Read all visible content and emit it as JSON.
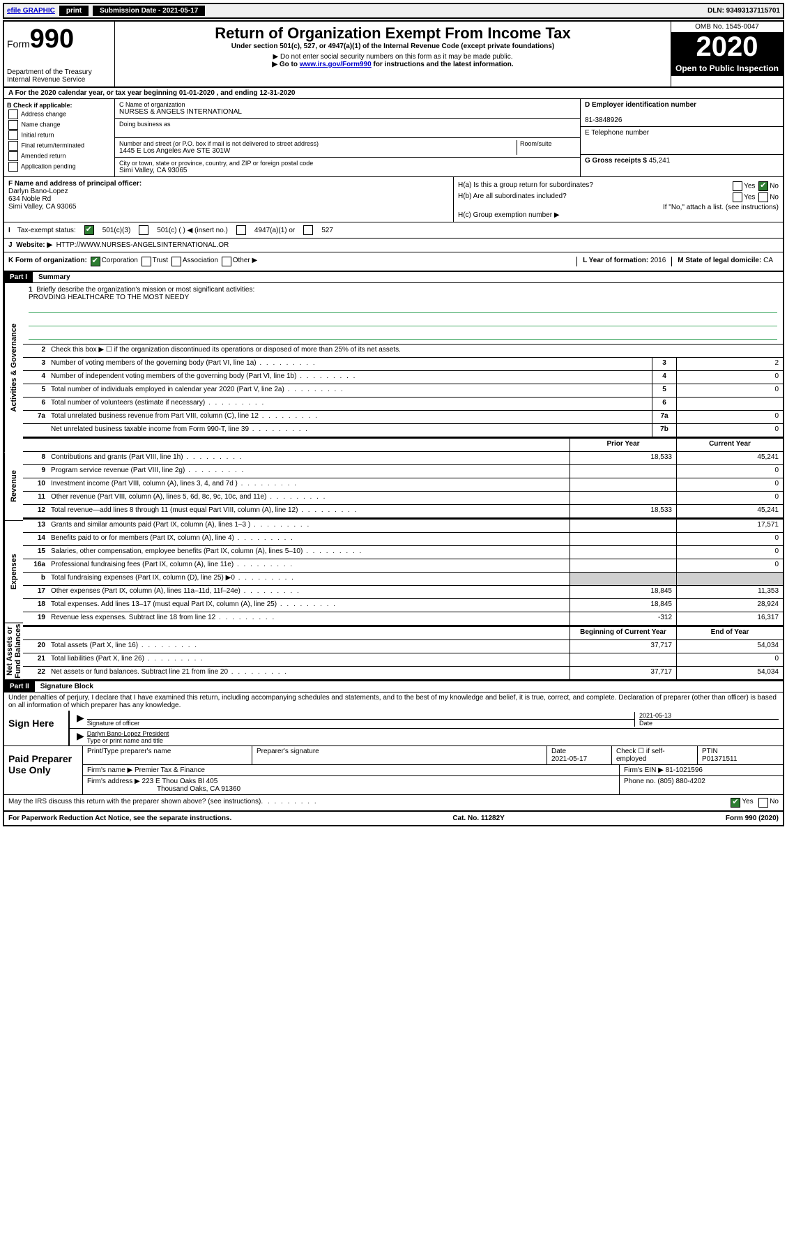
{
  "topbar": {
    "efile": "efile GRAPHIC",
    "print": "print",
    "subdate_label": "Submission Date - 2021-05-17",
    "dln": "DLN: 93493137115701"
  },
  "header": {
    "form_label": "Form",
    "form_num": "990",
    "dept1": "Department of the Treasury",
    "dept2": "Internal Revenue Service",
    "title": "Return of Organization Exempt From Income Tax",
    "sub1": "Under section 501(c), 527, or 4947(a)(1) of the Internal Revenue Code (except private foundations)",
    "sub2": "▶ Do not enter social security numbers on this form as it may be made public.",
    "sub3_pre": "▶ Go to ",
    "sub3_link": "www.irs.gov/Form990",
    "sub3_post": " for instructions and the latest information.",
    "omb": "OMB No. 1545-0047",
    "year": "2020",
    "open": "Open to Public Inspection"
  },
  "rowA": "A For the 2020 calendar year, or tax year beginning 01-01-2020    , and ending 12-31-2020",
  "boxB": {
    "label": "B Check if applicable:",
    "opts": [
      "Address change",
      "Name change",
      "Initial return",
      "Final return/terminated",
      "Amended return",
      "Application pending"
    ]
  },
  "boxC": {
    "name_lbl": "C Name of organization",
    "name": "NURSES & ANGELS INTERNATIONAL",
    "dba_lbl": "Doing business as",
    "addr_lbl": "Number and street (or P.O. box if mail is not delivered to street address)",
    "room_lbl": "Room/suite",
    "addr": "1445 E Los Angeles Ave STE 301W",
    "city_lbl": "City or town, state or province, country, and ZIP or foreign postal code",
    "city": "Simi Valley, CA  93065"
  },
  "boxD": {
    "lbl": "D Employer identification number",
    "val": "81-3848926"
  },
  "boxE": {
    "lbl": "E Telephone number",
    "val": ""
  },
  "boxG": {
    "lbl": "G Gross receipts $",
    "val": "45,241"
  },
  "boxF": {
    "lbl": "F  Name and address of principal officer:",
    "name": "Darlyn Bano-Lopez",
    "addr1": "634 Noble Rd",
    "addr2": "Simi Valley, CA  93065"
  },
  "boxH": {
    "a_lbl": "H(a)  Is this a group return for subordinates?",
    "b_lbl": "H(b)  Are all subordinates included?",
    "b_note": "If \"No,\" attach a list. (see instructions)",
    "c_lbl": "H(c)  Group exemption number ▶",
    "yes": "Yes",
    "no": "No"
  },
  "rowI": {
    "lbl": "Tax-exempt status:",
    "o1": "501(c)(3)",
    "o2": "501(c) (   ) ◀ (insert no.)",
    "o3": "4947(a)(1) or",
    "o4": "527"
  },
  "rowJ": {
    "lbl": "Website: ▶",
    "val": "HTTP://WWW.NURSES-ANGELSINTERNATIONAL.OR"
  },
  "rowK": {
    "lbl": "K Form of organization:",
    "o1": "Corporation",
    "o2": "Trust",
    "o3": "Association",
    "o4": "Other ▶",
    "l_lbl": "L Year of formation:",
    "l_val": "2016",
    "m_lbl": "M State of legal domicile:",
    "m_val": "CA"
  },
  "part1": {
    "hdr": "Part I",
    "title": "Summary",
    "sides": {
      "gov": "Activities & Governance",
      "rev": "Revenue",
      "exp": "Expenses",
      "net": "Net Assets or Fund Balances"
    },
    "l1": "Briefly describe the organization's mission or most significant activities:",
    "mission": "PROVDING HEALTHCARE TO THE MOST NEEDY",
    "l2": "Check this box ▶ ☐  if the organization discontinued its operations or disposed of more than 25% of its net assets.",
    "lines_gov": [
      {
        "n": "3",
        "t": "Number of voting members of the governing body (Part VI, line 1a)",
        "box": "3",
        "v": "2"
      },
      {
        "n": "4",
        "t": "Number of independent voting members of the governing body (Part VI, line 1b)",
        "box": "4",
        "v": "0"
      },
      {
        "n": "5",
        "t": "Total number of individuals employed in calendar year 2020 (Part V, line 2a)",
        "box": "5",
        "v": "0"
      },
      {
        "n": "6",
        "t": "Total number of volunteers (estimate if necessary)",
        "box": "6",
        "v": ""
      },
      {
        "n": "7a",
        "t": "Total unrelated business revenue from Part VIII, column (C), line 12",
        "box": "7a",
        "v": "0"
      },
      {
        "n": "",
        "t": "Net unrelated business taxable income from Form 990-T, line 39",
        "box": "7b",
        "v": "0"
      }
    ],
    "col_hdr": {
      "prior": "Prior Year",
      "curr": "Current Year",
      "beg": "Beginning of Current Year",
      "end": "End of Year"
    },
    "lines_rev": [
      {
        "n": "8",
        "t": "Contributions and grants (Part VIII, line 1h)",
        "p": "18,533",
        "c": "45,241"
      },
      {
        "n": "9",
        "t": "Program service revenue (Part VIII, line 2g)",
        "p": "",
        "c": "0"
      },
      {
        "n": "10",
        "t": "Investment income (Part VIII, column (A), lines 3, 4, and 7d )",
        "p": "",
        "c": "0"
      },
      {
        "n": "11",
        "t": "Other revenue (Part VIII, column (A), lines 5, 6d, 8c, 9c, 10c, and 11e)",
        "p": "",
        "c": "0"
      },
      {
        "n": "12",
        "t": "Total revenue—add lines 8 through 11 (must equal Part VIII, column (A), line 12)",
        "p": "18,533",
        "c": "45,241"
      }
    ],
    "lines_exp": [
      {
        "n": "13",
        "t": "Grants and similar amounts paid (Part IX, column (A), lines 1–3 )",
        "p": "",
        "c": "17,571"
      },
      {
        "n": "14",
        "t": "Benefits paid to or for members (Part IX, column (A), line 4)",
        "p": "",
        "c": "0"
      },
      {
        "n": "15",
        "t": "Salaries, other compensation, employee benefits (Part IX, column (A), lines 5–10)",
        "p": "",
        "c": "0"
      },
      {
        "n": "16a",
        "t": "Professional fundraising fees (Part IX, column (A), line 11e)",
        "p": "",
        "c": "0"
      },
      {
        "n": "b",
        "t": "Total fundraising expenses (Part IX, column (D), line 25) ▶0",
        "p": "shade",
        "c": "shade"
      },
      {
        "n": "17",
        "t": "Other expenses (Part IX, column (A), lines 11a–11d, 11f–24e)",
        "p": "18,845",
        "c": "11,353"
      },
      {
        "n": "18",
        "t": "Total expenses. Add lines 13–17 (must equal Part IX, column (A), line 25)",
        "p": "18,845",
        "c": "28,924"
      },
      {
        "n": "19",
        "t": "Revenue less expenses. Subtract line 18 from line 12",
        "p": "-312",
        "c": "16,317"
      }
    ],
    "lines_net": [
      {
        "n": "20",
        "t": "Total assets (Part X, line 16)",
        "p": "37,717",
        "c": "54,034"
      },
      {
        "n": "21",
        "t": "Total liabilities (Part X, line 26)",
        "p": "",
        "c": "0"
      },
      {
        "n": "22",
        "t": "Net assets or fund balances. Subtract line 21 from line 20",
        "p": "37,717",
        "c": "54,034"
      }
    ]
  },
  "part2": {
    "hdr": "Part II",
    "title": "Signature Block",
    "perjury": "Under penalties of perjury, I declare that I have examined this return, including accompanying schedules and statements, and to the best of my knowledge and belief, it is true, correct, and complete. Declaration of preparer (other than officer) is based on all information of which preparer has any knowledge.",
    "sign_here": "Sign Here",
    "sig_officer": "Signature of officer",
    "sig_date": "2021-05-13",
    "date_lbl": "Date",
    "name_title": "Darlyn Bano-Lopez  President",
    "name_title_lbl": "Type or print name and title",
    "paid": "Paid Preparer Use Only",
    "pp_name_lbl": "Print/Type preparer's name",
    "pp_sig_lbl": "Preparer's signature",
    "pp_date_lbl": "Date",
    "pp_date": "2021-05-17",
    "pp_check_lbl": "Check ☐ if self-employed",
    "ptin_lbl": "PTIN",
    "ptin": "P01371511",
    "firm_name_lbl": "Firm's name    ▶",
    "firm_name": "Premier Tax & Finance",
    "firm_ein_lbl": "Firm's EIN ▶",
    "firm_ein": "81-1021596",
    "firm_addr_lbl": "Firm's address ▶",
    "firm_addr1": "223 E Thou Oaks Bl 405",
    "firm_addr2": "Thousand Oaks, CA  91360",
    "phone_lbl": "Phone no.",
    "phone": "(805) 880-4202",
    "discuss": "May the IRS discuss this return with the preparer shown above? (see instructions)",
    "yes": "Yes",
    "no": "No"
  },
  "footer": {
    "left": "For Paperwork Reduction Act Notice, see the separate instructions.",
    "mid": "Cat. No. 11282Y",
    "right": "Form 990 (2020)"
  }
}
